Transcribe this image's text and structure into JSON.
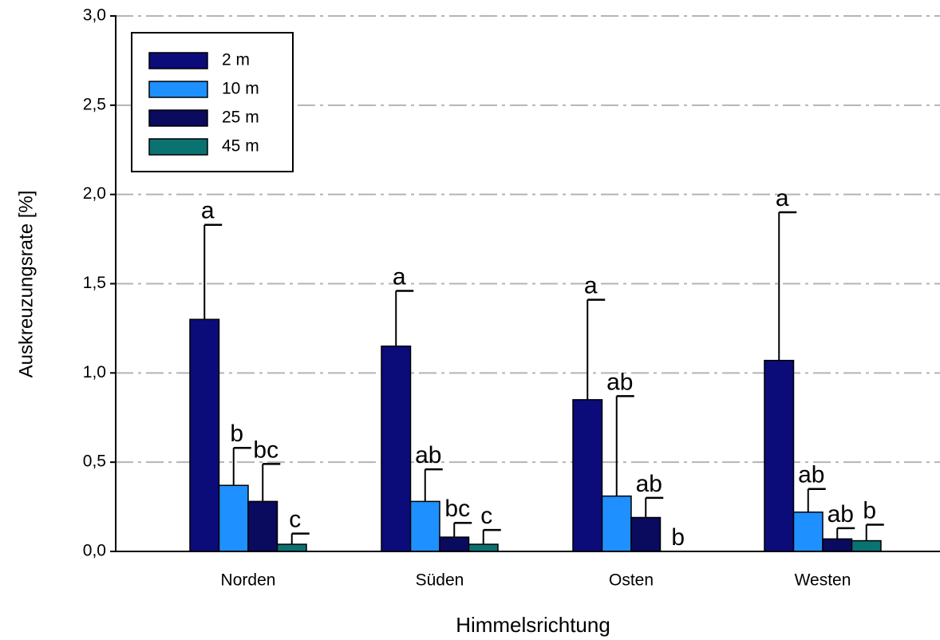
{
  "chart_data": {
    "type": "bar",
    "xlabel": "Himmelsrichtung",
    "ylabel": "Auskreuzungsrate [%]",
    "categories": [
      "Norden",
      "Süden",
      "Osten",
      "Westen"
    ],
    "series": [
      {
        "name": "2 m",
        "color": "#0b0b7a",
        "values": [
          1.3,
          1.15,
          0.85,
          1.07
        ],
        "errors": [
          0.53,
          0.31,
          0.56,
          0.83
        ],
        "letters": [
          "a",
          "a",
          "a",
          "a"
        ]
      },
      {
        "name": "10 m",
        "color": "#1e90ff",
        "values": [
          0.37,
          0.28,
          0.31,
          0.22
        ],
        "errors": [
          0.21,
          0.18,
          0.56,
          0.13
        ],
        "letters": [
          "b",
          "ab",
          "ab",
          "ab"
        ]
      },
      {
        "name": "25 m",
        "color": "#0a0a5e",
        "values": [
          0.28,
          0.08,
          0.19,
          0.07
        ],
        "errors": [
          0.21,
          0.08,
          0.11,
          0.06
        ],
        "letters": [
          "bc",
          "bc",
          "ab",
          "ab"
        ]
      },
      {
        "name": "45 m",
        "color": "#0b7272",
        "values": [
          0.04,
          0.04,
          0,
          0.06
        ],
        "errors": [
          0.06,
          0.08,
          null,
          0.09
        ],
        "letters": [
          "c",
          "c",
          "b",
          "b"
        ]
      }
    ],
    "ylim": [
      0,
      3
    ],
    "yticks": [
      {
        "value": 0,
        "label": "0,0"
      },
      {
        "value": 0.5,
        "label": "0,5"
      },
      {
        "value": 1,
        "label": "1,0"
      },
      {
        "value": 1.5,
        "label": "1,5"
      },
      {
        "value": 2,
        "label": "2,0"
      },
      {
        "value": 2.5,
        "label": "2,5"
      },
      {
        "value": 3,
        "label": "3,0"
      }
    ],
    "grid": true,
    "legend": "upper left"
  }
}
